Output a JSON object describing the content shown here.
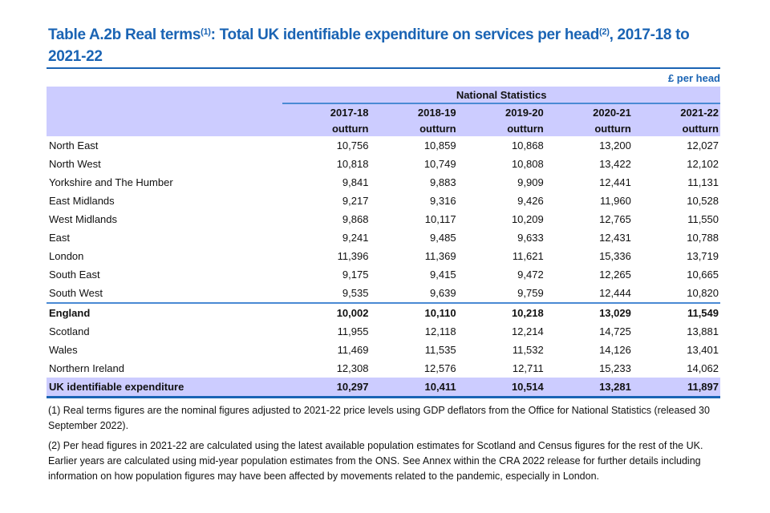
{
  "title": {
    "prefix": "Table A.2b  Real terms",
    "sup1": "(1)",
    "middle": ": Total UK identifiable expenditure on services per head",
    "sup2": "(2)",
    "suffix": ", 2017-18 to 2021-22"
  },
  "unit": "£ per head",
  "group_header": "National Statistics",
  "columns": [
    {
      "year": "2017-18",
      "type": "outturn"
    },
    {
      "year": "2018-19",
      "type": "outturn"
    },
    {
      "year": "2019-20",
      "type": "outturn"
    },
    {
      "year": "2020-21",
      "type": "outturn"
    },
    {
      "year": "2021-22",
      "type": "outturn"
    }
  ],
  "rows": [
    {
      "label": "North East",
      "values": [
        "10,756",
        "10,859",
        "10,868",
        "13,200",
        "12,027"
      ]
    },
    {
      "label": "North West",
      "values": [
        "10,818",
        "10,749",
        "10,808",
        "13,422",
        "12,102"
      ]
    },
    {
      "label": "Yorkshire and The Humber",
      "values": [
        "9,841",
        "9,883",
        "9,909",
        "12,441",
        "11,131"
      ]
    },
    {
      "label": "East Midlands",
      "values": [
        "9,217",
        "9,316",
        "9,426",
        "11,960",
        "10,528"
      ]
    },
    {
      "label": "West Midlands",
      "values": [
        "9,868",
        "10,117",
        "10,209",
        "12,765",
        "11,550"
      ]
    },
    {
      "label": "East",
      "values": [
        "9,241",
        "9,485",
        "9,633",
        "12,431",
        "10,788"
      ]
    },
    {
      "label": "London",
      "values": [
        "11,396",
        "11,369",
        "11,621",
        "15,336",
        "13,719"
      ]
    },
    {
      "label": "South East",
      "values": [
        "9,175",
        "9,415",
        "9,472",
        "12,265",
        "10,665"
      ]
    },
    {
      "label": "South West",
      "values": [
        "9,535",
        "9,639",
        "9,759",
        "12,444",
        "10,820"
      ]
    },
    {
      "label": "England",
      "values": [
        "10,002",
        "10,110",
        "10,218",
        "13,029",
        "11,549"
      ]
    },
    {
      "label": "Scotland",
      "values": [
        "11,955",
        "12,118",
        "12,214",
        "14,725",
        "13,881"
      ]
    },
    {
      "label": "Wales",
      "values": [
        "11,469",
        "11,535",
        "11,532",
        "14,126",
        "13,401"
      ]
    },
    {
      "label": "Northern Ireland",
      "values": [
        "12,308",
        "12,576",
        "12,711",
        "15,233",
        "14,062"
      ]
    },
    {
      "label": "UK identifiable expenditure",
      "values": [
        "10,297",
        "10,411",
        "10,514",
        "13,281",
        "11,897"
      ]
    }
  ],
  "footnotes": [
    "(1) Real terms figures are the nominal figures adjusted to 2021-22 price levels using GDP deflators from the Office for National Statistics (released 30 September 2022).",
    "(2) Per head figures in 2021-22 are calculated using the latest available population estimates for Scotland and Census figures for the rest of the UK. Earlier years are calculated using mid-year population estimates from the ONS. See Annex within the CRA 2022 release for further details including information on how population figures may have been affected by movements related to the pandemic, especially in London."
  ]
}
